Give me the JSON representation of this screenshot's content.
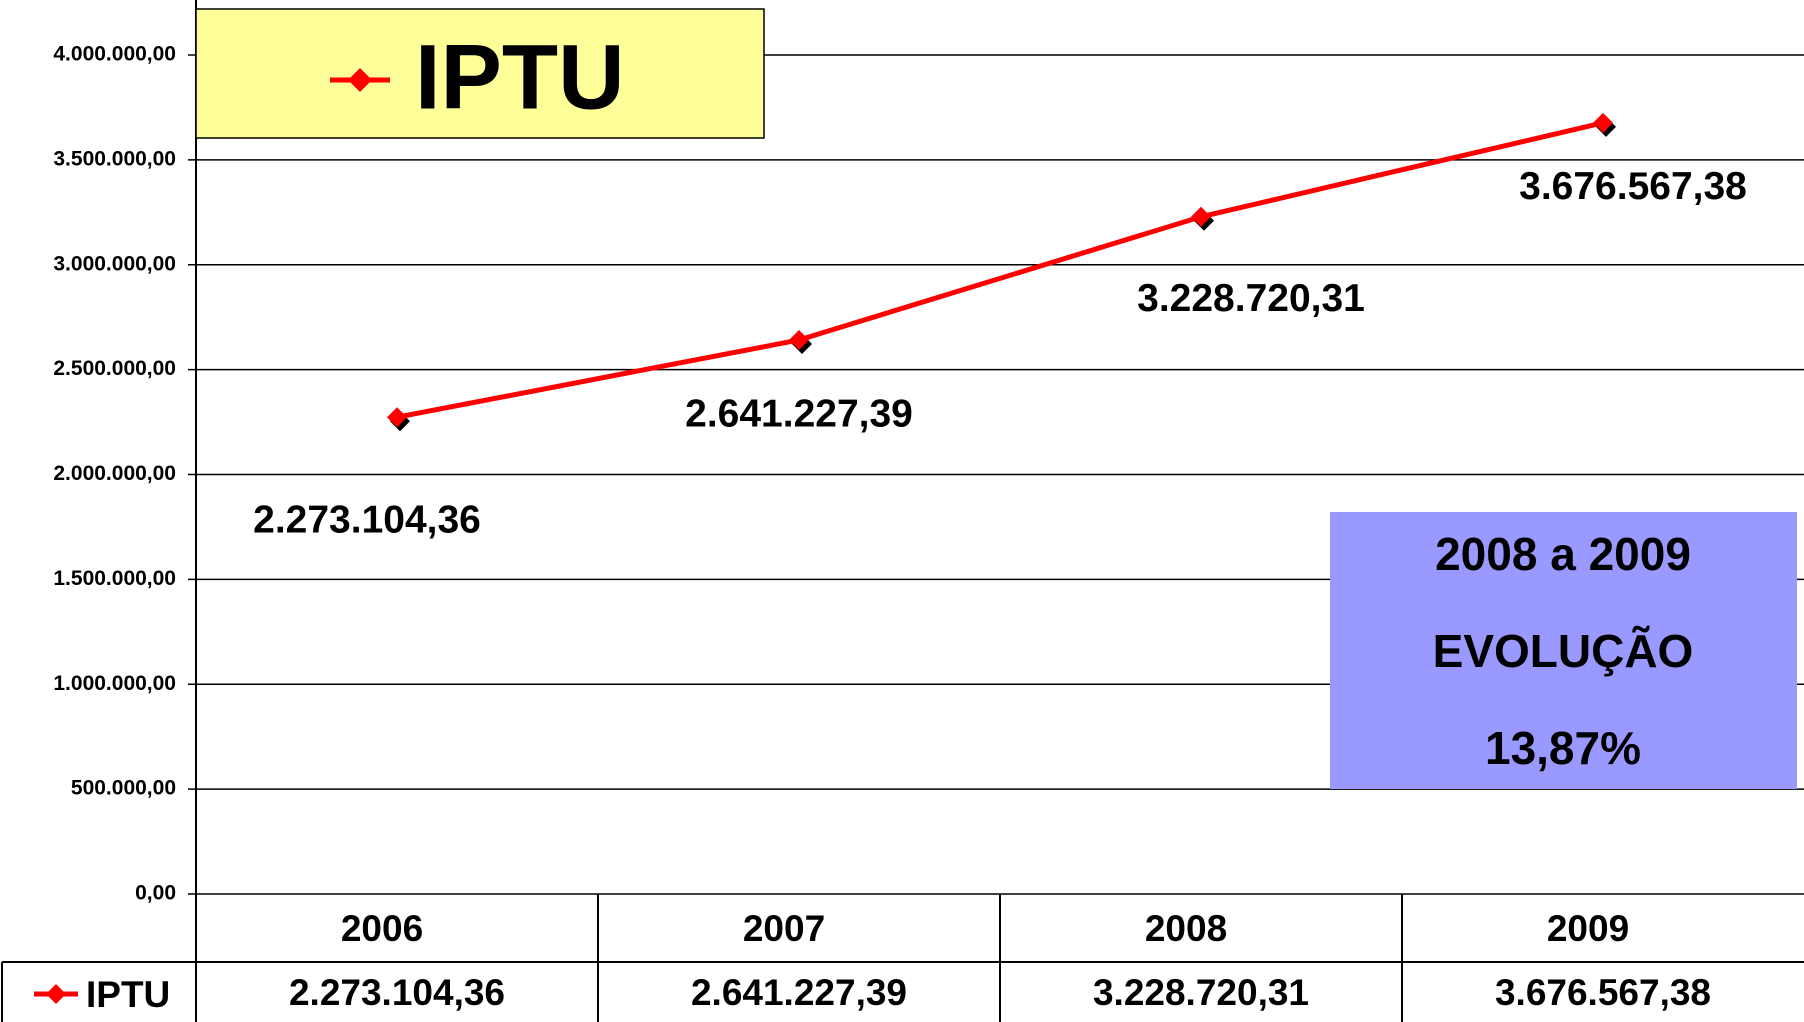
{
  "chart_data": {
    "type": "line",
    "categories": [
      "2006",
      "2007",
      "2008",
      "2009"
    ],
    "series": [
      {
        "name": "IPTU",
        "color": "#ff0000",
        "values": [
          2273104.36,
          2641227.39,
          3228720.31,
          3676567.38
        ],
        "value_labels": [
          "2.273.104,36",
          "2.641.227,39",
          "3.228.720,31",
          "3.676.567,38"
        ]
      }
    ],
    "ylim": [
      0,
      4000000
    ],
    "yticks": [
      {
        "value": 0,
        "label": "0,00"
      },
      {
        "value": 500000,
        "label": "500.000,00"
      },
      {
        "value": 1000000,
        "label": "1.000.000,00"
      },
      {
        "value": 1500000,
        "label": "1.500.000,00"
      },
      {
        "value": 2000000,
        "label": "2.000.000,00"
      },
      {
        "value": 2500000,
        "label": "2.500.000,00"
      },
      {
        "value": 3000000,
        "label": "3.000.000,00"
      },
      {
        "value": 3500000,
        "label": "3.500.000,00"
      },
      {
        "value": 4000000,
        "label": "4.000.000,00"
      }
    ],
    "grid": true,
    "annotations": [
      "2008 a 2009",
      "EVOLUÇÃO",
      "13,87%"
    ]
  }
}
